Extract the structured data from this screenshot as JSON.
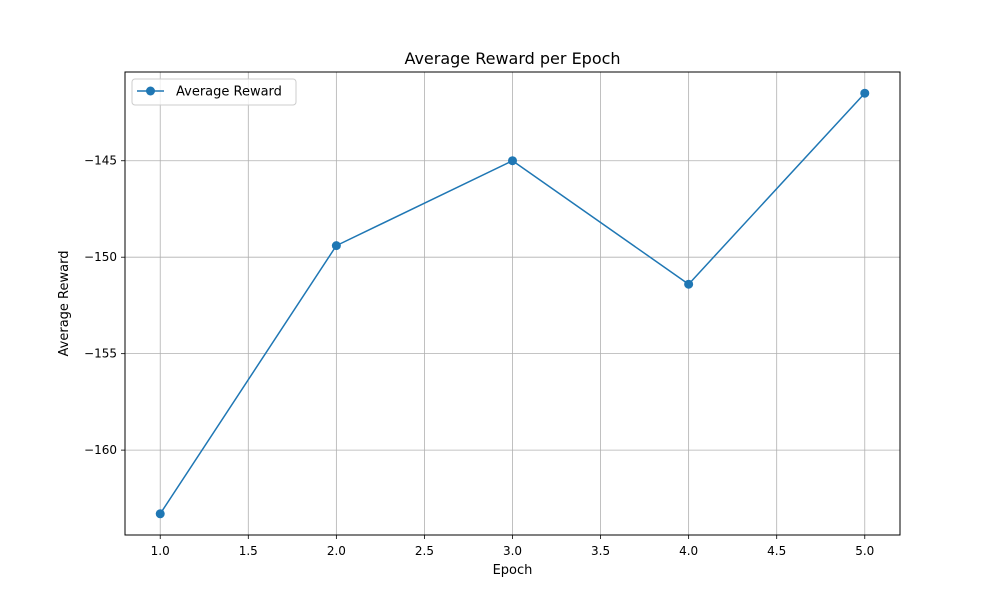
{
  "chart_data": {
    "type": "line",
    "title": "Average Reward per Epoch",
    "xlabel": "Epoch",
    "ylabel": "Average Reward",
    "x": [
      1,
      2,
      3,
      4,
      5
    ],
    "series": [
      {
        "name": "Average Reward",
        "values": [
          -163.3,
          -149.4,
          -145.0,
          -151.4,
          -141.5
        ],
        "color": "#1f77b4",
        "marker": "circle"
      }
    ],
    "xlim": [
      0.8,
      5.2
    ],
    "ylim": [
      -164.4,
      -140.4
    ],
    "xticks": [
      1.0,
      1.5,
      2.0,
      2.5,
      3.0,
      3.5,
      4.0,
      4.5,
      5.0
    ],
    "xtick_labels": [
      "1.0",
      "1.5",
      "2.0",
      "2.5",
      "3.0",
      "3.5",
      "4.0",
      "4.5",
      "5.0"
    ],
    "yticks": [
      -160,
      -155,
      -150,
      -145
    ],
    "ytick_labels": [
      "−160",
      "−155",
      "−150",
      "−145"
    ],
    "grid": true,
    "grid_color": "#b0b0b0",
    "legend_position": "top-left"
  }
}
